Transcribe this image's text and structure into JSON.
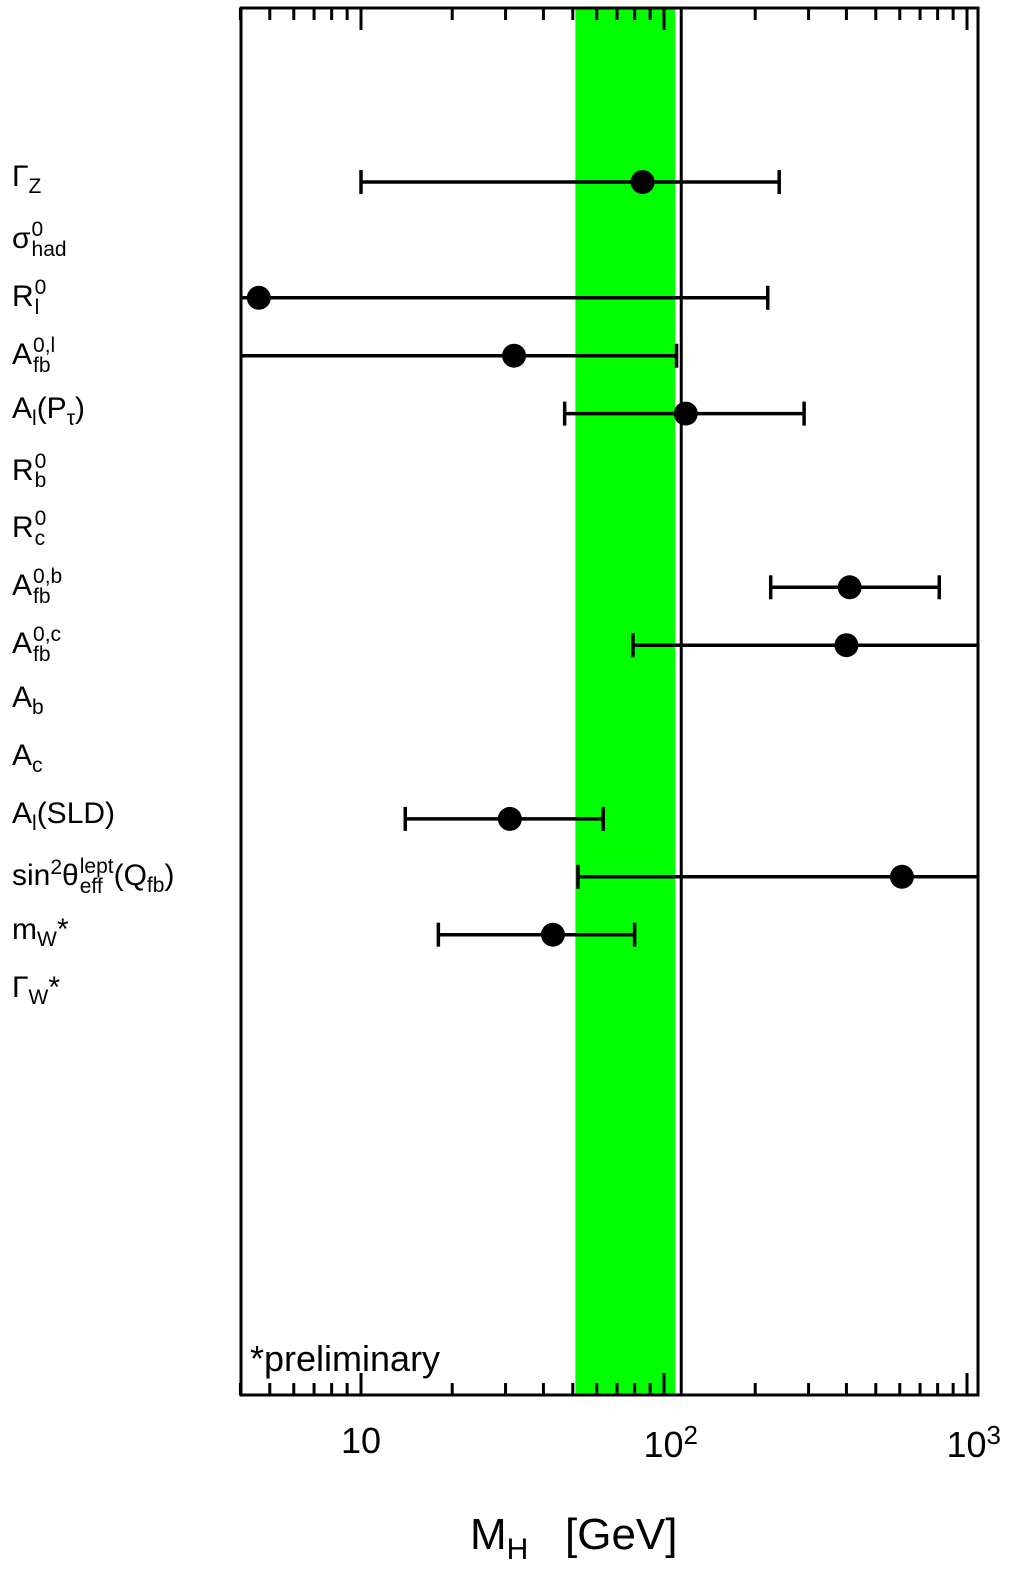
{
  "chart_data": {
    "type": "scatter",
    "x_scale": "log",
    "xlim": [
      4,
      1100
    ],
    "xlabel": {
      "main": "M",
      "sub": "H",
      "unit": "[GeV]"
    },
    "x_ticks": [
      {
        "value": 10,
        "base": "10",
        "exp": ""
      },
      {
        "value": 100,
        "base": "10",
        "exp": "2"
      },
      {
        "value": 1000,
        "base": "10",
        "exp": "3"
      }
    ],
    "band": {
      "low": 51,
      "high": 109,
      "color": "#00ff00"
    },
    "reference_line": {
      "value": 114
    },
    "note": "*preliminary",
    "observables": [
      {
        "label": {
          "main": "Γ",
          "sub": "Z",
          "sup": "",
          "tail": ""
        },
        "central": 85,
        "low": 10,
        "high": 240
      },
      {
        "label": {
          "main": "σ",
          "sub": "had",
          "sup": "0",
          "tail": ""
        },
        "central": null,
        "low": null,
        "high": null
      },
      {
        "label": {
          "main": "R",
          "sub": "l",
          "sup": "0",
          "tail": ""
        },
        "central": 4.6,
        "low": 4,
        "high": 220
      },
      {
        "label": {
          "main": "A",
          "sub": "fb",
          "sup": "0,l",
          "tail": ""
        },
        "central": 32,
        "low": 4,
        "high": 110
      },
      {
        "label": {
          "main": "A",
          "sub": "l",
          "sup": "",
          "tail": "(P<sub>τ</sub>)"
        },
        "central": 118,
        "low": 47,
        "high": 290
      },
      {
        "label": {
          "main": "R",
          "sub": "b",
          "sup": "0",
          "tail": ""
        },
        "central": null,
        "low": null,
        "high": null
      },
      {
        "label": {
          "main": "R",
          "sub": "c",
          "sup": "0",
          "tail": ""
        },
        "central": null,
        "low": null,
        "high": null
      },
      {
        "label": {
          "main": "A",
          "sub": "fb",
          "sup": "0,b",
          "tail": ""
        },
        "central": 410,
        "low": 225,
        "high": 810
      },
      {
        "label": {
          "main": "A",
          "sub": "fb",
          "sup": "0,c",
          "tail": ""
        },
        "central": 400,
        "low": 79,
        "high": 1100
      },
      {
        "label": {
          "main": "A",
          "sub": "b",
          "sup": "",
          "tail": ""
        },
        "central": null,
        "low": null,
        "high": null
      },
      {
        "label": {
          "main": "A",
          "sub": "c",
          "sup": "",
          "tail": ""
        },
        "central": null,
        "low": null,
        "high": null
      },
      {
        "label": {
          "main": "A",
          "sub": "l",
          "sup": "",
          "tail": "(SLD)"
        },
        "central": 31,
        "low": 14,
        "high": 63
      },
      {
        "label": {
          "main": "sin<sup>2</sup>θ",
          "sub": "eff",
          "sup": "lept",
          "tail": "(Q<sub>fb</sub>)"
        },
        "central": 610,
        "low": 52,
        "high": 1100
      },
      {
        "label": {
          "main": "m",
          "sub": "W",
          "sup": "",
          "tail": "*"
        },
        "central": 43,
        "low": 18,
        "high": 80
      },
      {
        "label": {
          "main": "Γ",
          "sub": "W",
          "sup": "",
          "tail": "*"
        },
        "central": null,
        "low": null,
        "high": null
      }
    ]
  }
}
